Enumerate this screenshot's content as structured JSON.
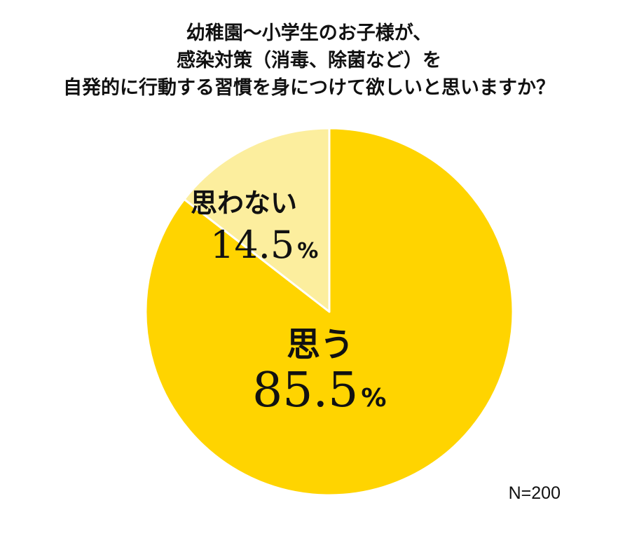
{
  "title_lines": [
    "幼稚園〜小学生のお子様が、",
    "感染対策（消毒、除菌など）を",
    "自発的に行動する習慣を身につけて欲しいと思いますか？"
  ],
  "note": "N=200",
  "colors": {
    "primary_slice": "#FFD400",
    "secondary_slice": "#FCEE9E",
    "slice_border": "#ffffff"
  },
  "chart_data": {
    "type": "pie",
    "start": "12 o'clock",
    "direction": "clockwise",
    "slices": [
      {
        "label": "思う",
        "value": 85.5,
        "value_text": "85.5",
        "unit": "%"
      },
      {
        "label": "思わない",
        "value": 14.5,
        "value_text": "14.5",
        "unit": "%"
      }
    ],
    "sample_size": "N=200"
  }
}
